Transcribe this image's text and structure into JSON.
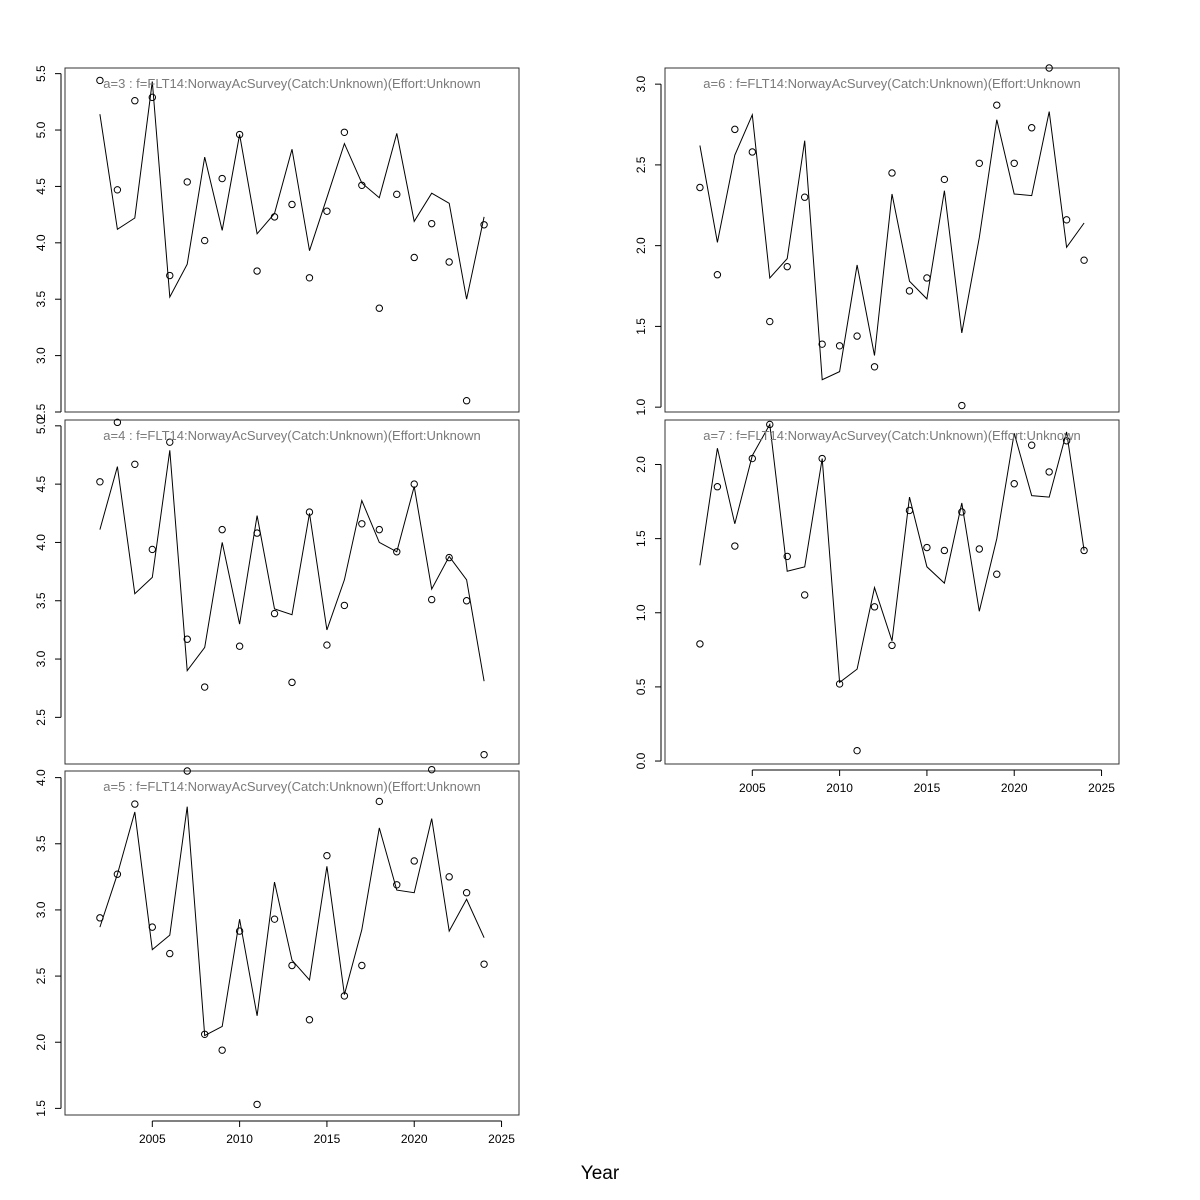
{
  "chart_data": {
    "type": "line",
    "xlabel": "Year",
    "x": [
      2002,
      2003,
      2004,
      2005,
      2006,
      2007,
      2008,
      2009,
      2010,
      2011,
      2012,
      2013,
      2014,
      2015,
      2016,
      2017,
      2018,
      2019,
      2020,
      2021,
      2022,
      2023,
      2024
    ],
    "panels": [
      {
        "title": "a=3  :  f=FLT14:NorwayAcSurvey(Catch:Unknown)(Effort:Unknown",
        "xlim": [
          2000,
          2026
        ],
        "ylim": [
          2.5,
          5.55
        ],
        "yticks": [
          2.5,
          3.0,
          3.5,
          4.0,
          4.5,
          5.0,
          5.5
        ],
        "ytick_labels": [
          "2.5",
          "3.0",
          "3.5",
          "4.0",
          "4.5",
          "5.0",
          "5.5"
        ],
        "show_x_axis": false,
        "line": [
          5.14,
          4.12,
          4.22,
          5.43,
          3.52,
          3.81,
          4.76,
          4.11,
          4.96,
          4.08,
          4.26,
          4.83,
          3.93,
          4.4,
          4.88,
          4.53,
          4.4,
          4.97,
          4.19,
          4.44,
          4.35,
          3.5,
          4.23
        ],
        "points": [
          5.44,
          4.47,
          5.26,
          5.29,
          3.71,
          4.54,
          4.02,
          4.57,
          4.96,
          3.75,
          4.23,
          4.34,
          3.69,
          4.28,
          4.98,
          4.51,
          3.42,
          4.43,
          3.87,
          4.17,
          3.83,
          2.6,
          4.16
        ]
      },
      {
        "title": "a=4  :  f=FLT14:NorwayAcSurvey(Catch:Unknown)(Effort:Unknown",
        "xlim": [
          2000,
          2026
        ],
        "ylim": [
          2.1,
          5.05
        ],
        "yticks": [
          2.5,
          3.0,
          3.5,
          4.0,
          4.5,
          5.0
        ],
        "ytick_labels": [
          "2.5",
          "3.0",
          "3.5",
          "4.0",
          "4.5",
          "5.0"
        ],
        "show_x_axis": false,
        "line": [
          4.11,
          4.65,
          3.56,
          3.7,
          4.79,
          2.9,
          3.1,
          4.0,
          3.3,
          4.23,
          3.43,
          3.38,
          4.25,
          3.25,
          3.68,
          4.36,
          4.0,
          3.92,
          4.48,
          3.6,
          3.88,
          3.68,
          2.81
        ],
        "points": [
          4.52,
          5.03,
          4.67,
          3.94,
          4.86,
          3.17,
          2.76,
          4.11,
          3.11,
          4.08,
          3.39,
          2.8,
          4.26,
          3.12,
          3.46,
          4.16,
          4.11,
          3.92,
          4.5,
          3.51,
          3.87,
          3.5,
          2.18
        ]
      },
      {
        "title": "a=5  :  f=FLT14:NorwayAcSurvey(Catch:Unknown)(Effort:Unknown",
        "xlim": [
          2000,
          2026
        ],
        "ylim": [
          1.45,
          4.05
        ],
        "yticks": [
          1.5,
          2.0,
          2.5,
          3.0,
          3.5,
          4.0
        ],
        "ytick_labels": [
          "1.5",
          "2.0",
          "2.5",
          "3.0",
          "3.5",
          "4.0"
        ],
        "show_x_axis": true,
        "xticks": [
          2005,
          2010,
          2015,
          2020,
          2025
        ],
        "xtick_labels": [
          "2005",
          "2010",
          "2015",
          "2020",
          "2025"
        ],
        "line": [
          2.87,
          3.27,
          3.74,
          2.7,
          2.81,
          3.78,
          2.05,
          2.12,
          2.93,
          2.2,
          3.21,
          2.62,
          2.47,
          3.33,
          2.36,
          2.85,
          3.62,
          3.15,
          3.13,
          3.69,
          2.84,
          3.08,
          2.79
        ],
        "points": [
          2.94,
          3.27,
          3.8,
          2.87,
          2.67,
          4.05,
          2.06,
          1.94,
          2.84,
          1.53,
          2.93,
          2.58,
          2.17,
          3.41,
          2.35,
          2.58,
          3.82,
          3.19,
          3.37,
          4.06,
          3.25,
          3.13,
          2.59
        ]
      },
      {
        "title": "a=6  :  f=FLT14:NorwayAcSurvey(Catch:Unknown)(Effort:Unknown",
        "xlim": [
          2000,
          2026
        ],
        "ylim": [
          0.97,
          3.1
        ],
        "yticks": [
          1.0,
          1.5,
          2.0,
          2.5,
          3.0
        ],
        "ytick_labels": [
          "1.0",
          "1.5",
          "2.0",
          "2.5",
          "3.0"
        ],
        "show_x_axis": false,
        "line": [
          2.62,
          2.02,
          2.56,
          2.81,
          1.8,
          1.92,
          2.65,
          1.17,
          1.22,
          1.88,
          1.32,
          2.32,
          1.78,
          1.67,
          2.34,
          1.46,
          2.05,
          2.78,
          2.32,
          2.31,
          2.83,
          1.99,
          2.14
        ],
        "points": [
          2.36,
          1.82,
          2.72,
          2.58,
          1.53,
          1.87,
          2.3,
          1.39,
          1.38,
          1.44,
          1.25,
          2.45,
          1.72,
          1.8,
          2.41,
          1.01,
          2.51,
          2.87,
          2.51,
          2.73,
          3.1,
          2.16,
          1.91
        ]
      },
      {
        "title": "a=7  :  f=FLT14:NorwayAcSurvey(Catch:Unknown)(Effort:Unknown",
        "xlim": [
          2000,
          2026
        ],
        "ylim": [
          -0.02,
          2.3
        ],
        "yticks": [
          0.0,
          0.5,
          1.0,
          1.5,
          2.0
        ],
        "ytick_labels": [
          "0.0",
          "0.5",
          "1.0",
          "1.5",
          "2.0"
        ],
        "show_x_axis": true,
        "xticks": [
          2005,
          2010,
          2015,
          2020,
          2025
        ],
        "xtick_labels": [
          "2005",
          "2010",
          "2015",
          "2020",
          "2025"
        ],
        "line": [
          1.32,
          2.11,
          1.6,
          2.06,
          2.27,
          1.28,
          1.31,
          2.04,
          0.53,
          0.62,
          1.17,
          0.81,
          1.78,
          1.31,
          1.2,
          1.74,
          1.01,
          1.5,
          2.21,
          1.79,
          1.78,
          2.22,
          1.42
        ],
        "points": [
          0.79,
          1.85,
          1.45,
          2.04,
          2.27,
          1.38,
          1.12,
          2.04,
          0.52,
          0.07,
          1.04,
          0.78,
          1.69,
          1.44,
          1.42,
          1.68,
          1.43,
          1.26,
          1.87,
          2.13,
          1.95,
          2.16,
          1.42
        ]
      }
    ]
  }
}
